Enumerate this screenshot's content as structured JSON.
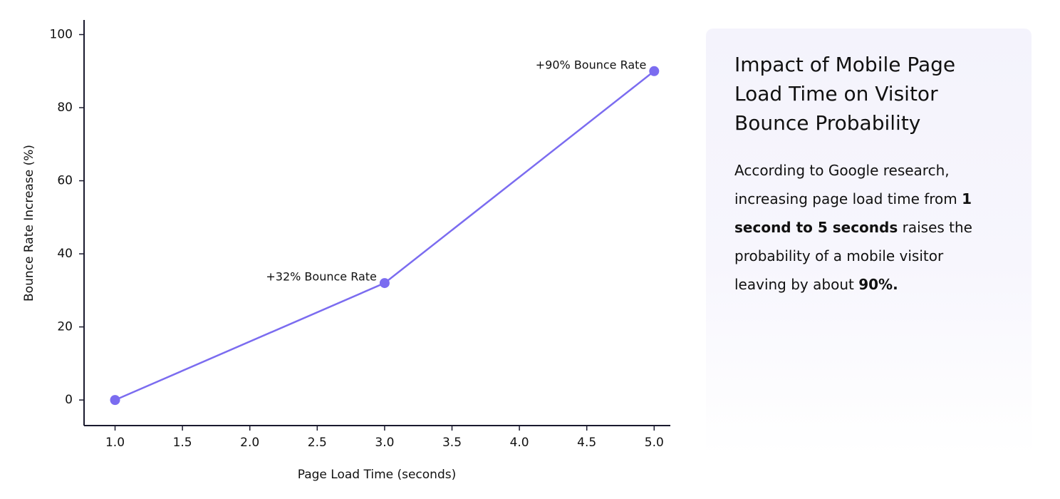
{
  "chart_data": {
    "type": "line",
    "x": [
      1,
      3,
      5
    ],
    "values": [
      0,
      32,
      90
    ],
    "value_labels": [
      null,
      "+32% Bounce Rate",
      "+90% Bounce Rate"
    ],
    "color": "#7b6cf0",
    "xlabel": "Page Load Time (seconds)",
    "ylabel": "Bounce Rate Increase (%)",
    "xlim": [
      0.77,
      5.12
    ],
    "ylim": [
      -7,
      104
    ],
    "xticks": [
      {
        "value": 1,
        "label": "1.0"
      },
      {
        "value": 1.5,
        "label": "1.5"
      },
      {
        "value": 2,
        "label": "2.0"
      },
      {
        "value": 2.5,
        "label": "2.5"
      },
      {
        "value": 3,
        "label": "3.0"
      },
      {
        "value": 3.5,
        "label": "3.5"
      },
      {
        "value": 4,
        "label": "4.0"
      },
      {
        "value": 4.5,
        "label": "4.5"
      },
      {
        "value": 5,
        "label": "5.0"
      }
    ],
    "yticks": [
      0,
      20,
      40,
      60,
      80,
      100
    ],
    "grid": false
  },
  "panel": {
    "title": "Impact of Mobile Page Load Time on Visitor Bounce Probability",
    "body": [
      {
        "text": "According to Google research, increasing page load time from ",
        "bold": false
      },
      {
        "text": "1 second to 5 seconds",
        "bold": true
      },
      {
        "text": " raises the probability of a mobile visitor leaving by about ",
        "bold": false
      },
      {
        "text": "90%.",
        "bold": true
      }
    ]
  }
}
